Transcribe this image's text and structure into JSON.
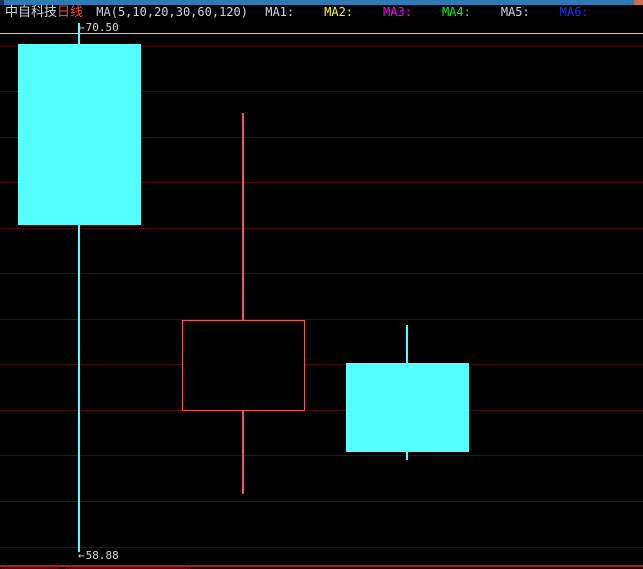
{
  "titlebar": {
    "stock_name": "中自科技",
    "period": "日线",
    "ma_settings": "MA(5,10,20,30,60,120)",
    "ma_labels": [
      {
        "label": "MA1:",
        "color": "#d6d6d6"
      },
      {
        "label": "MA2:",
        "color": "#ffff00"
      },
      {
        "label": "MA3:",
        "color": "#ff00ff"
      },
      {
        "label": "MA4:",
        "color": "#00ff00"
      },
      {
        "label": "MA5:",
        "color": "#d6d6d6"
      },
      {
        "label": "MA6:",
        "color": "#2a2aff"
      }
    ]
  },
  "annotations": {
    "high_label": "70.50",
    "low_label": "58.88",
    "arrow_glyph": "←"
  },
  "colors": {
    "bg": "#000000",
    "text": "#d6d6d6",
    "period_red": "#ff4444",
    "sep": "#c9c9c9",
    "grid": "#4a0808",
    "cyan": "#55ffff",
    "candle_red": "#f25555",
    "bar_blue": "#2e7bb4",
    "bar_navy": "#17365f",
    "bar_orange": "#cf6e4d",
    "bottom_red": "#a22222"
  },
  "chart_data": {
    "type": "candlestick",
    "title": "中自科技 日线",
    "high_annotation": 70.5,
    "low_annotation": 58.88,
    "y_gridline_values": [
      70,
      69,
      68,
      67,
      66,
      65,
      64,
      63,
      62,
      61,
      60,
      59
    ],
    "ylim": [
      58.88,
      70.5
    ],
    "grid": "horizontal-only",
    "candles": [
      {
        "open": 70.04,
        "high": 70.5,
        "low": 58.88,
        "close": 66.06,
        "direction": "down"
      },
      {
        "open": 61.98,
        "high": 68.52,
        "low": 60.15,
        "close": 63.98,
        "direction": "up"
      },
      {
        "open": 63.03,
        "high": 63.86,
        "low": 60.9,
        "close": 61.07,
        "direction": "down"
      }
    ]
  }
}
